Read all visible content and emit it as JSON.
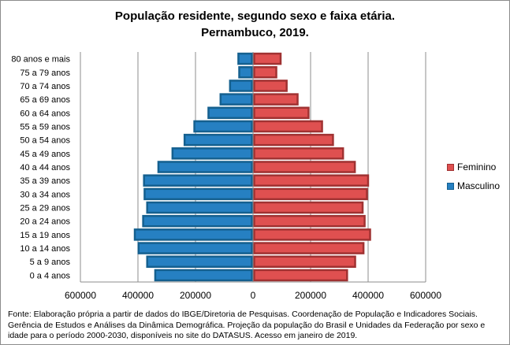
{
  "chart_data": {
    "type": "bar",
    "orientation": "horizontal",
    "layout": "population-pyramid",
    "title": "População residente, segundo sexo e faixa etária.",
    "subtitle": "Pernambuco, 2019.",
    "categories": [
      "0 a 4 anos",
      "5 a 9 anos",
      "10 a 14 anos",
      "15 a 19 anos",
      "20 a 24 anos",
      "25 a 29 anos",
      "30 a 34 anos",
      "35 a 39 anos",
      "40 a 44 anos",
      "45 a 49 anos",
      "50 a 54 anos",
      "55 a 59 anos",
      "60 a 64 anos",
      "65 a 69 anos",
      "70 a 74 anos",
      "75 a 79 anos",
      "80 anos e mais"
    ],
    "series": [
      {
        "name": "Masculino",
        "color": "#2680c2",
        "edge": "#15608f",
        "side": "left",
        "values": [
          344000,
          372000,
          402000,
          415000,
          386000,
          372000,
          381000,
          383000,
          333000,
          284000,
          242000,
          208000,
          159000,
          117000,
          84000,
          52000,
          55000
        ]
      },
      {
        "name": "Feminino",
        "color": "#df5050",
        "edge": "#a03232",
        "side": "right",
        "values": [
          331000,
          359000,
          388000,
          411000,
          392000,
          385000,
          400000,
          404000,
          358000,
          317000,
          282000,
          244000,
          197000,
          159000,
          121000,
          85000,
          100000
        ]
      }
    ],
    "xlim": [
      -600000,
      600000
    ],
    "xticks": [
      -600000,
      -400000,
      -200000,
      0,
      200000,
      400000,
      600000
    ],
    "xtick_labels": [
      "600000",
      "400000",
      "200000",
      "0",
      "200000",
      "400000",
      "600000"
    ],
    "grid": true,
    "legend_placement": "right"
  },
  "footer": "Fonte:  Elaboração própria a partir de dados  do  IBGE/Diretoria de Pesquisas. Coordenação de População e Indicadores Sociais. Gerência de Estudos e Análises da Dinâmica Demográfica. Projeção da população do Brasil e Unidades da Federação por sexo e idade para o período 2000-2030, disponíveis no site do DATASUS. Acesso em  janeiro de 2019."
}
